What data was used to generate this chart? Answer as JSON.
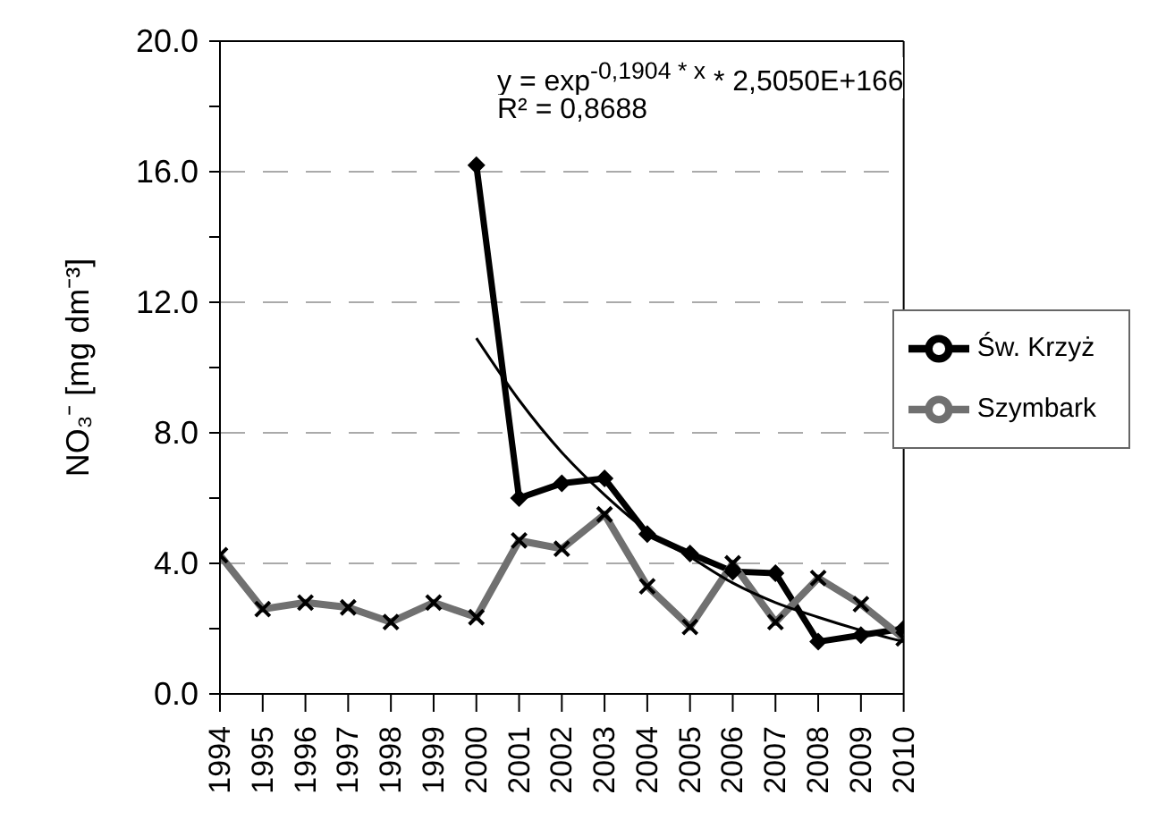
{
  "chart_data": {
    "type": "line",
    "ylabel": "NO₃⁻ [mg dm⁻³]",
    "annotations": [
      "y = exp$^{-0,1904 * x}$ * 2,5050E+166",
      "R² = 0,8688"
    ],
    "series": [
      {
        "name": "Św. Krzyż",
        "color": "#000000",
        "marker": "diamond",
        "x": [
          2000,
          2001,
          2002,
          2003,
          2004,
          2005,
          2006,
          2007,
          2008,
          2009,
          2010
        ],
        "values": [
          16.2,
          6.0,
          6.45,
          6.6,
          4.9,
          4.3,
          3.75,
          3.7,
          1.6,
          1.8,
          2.0
        ]
      },
      {
        "name": "Szymbark",
        "color": "#707070",
        "marker": "cross",
        "x": [
          1994,
          1995,
          1996,
          1997,
          1998,
          1999,
          2000,
          2001,
          2002,
          2003,
          2004,
          2005,
          2006,
          2007,
          2008,
          2009,
          2010
        ],
        "values": [
          4.25,
          2.6,
          2.8,
          2.65,
          2.2,
          2.8,
          2.35,
          4.7,
          4.45,
          5.5,
          3.3,
          2.05,
          4.0,
          2.2,
          3.55,
          2.75,
          1.7
        ]
      },
      {
        "type": "line",
        "color": "#000000",
        "marker": "none",
        "x": [
          2000,
          2001,
          2002,
          2003,
          2004,
          2005,
          2006,
          2007,
          2008,
          2009,
          2010
        ],
        "values": [
          10.9,
          9.0,
          7.4,
          6.1,
          5.0,
          4.2,
          3.4,
          2.8,
          2.35,
          1.95,
          1.6
        ]
      }
    ],
    "xlim": [
      1994,
      2010
    ],
    "xticks": [
      1994,
      1995,
      1996,
      1997,
      1998,
      1999,
      2000,
      2001,
      2002,
      2003,
      2004,
      2005,
      2006,
      2007,
      2008,
      2009,
      2010
    ],
    "ylim": [
      0,
      20
    ],
    "yticks": [
      {
        "value": 0,
        "label": "0.0"
      },
      {
        "value": 2,
        "label": null
      },
      {
        "value": 4,
        "label": "4.0"
      },
      {
        "value": 6,
        "label": null
      },
      {
        "value": 8,
        "label": "8.0"
      },
      {
        "value": 10,
        "label": null
      },
      {
        "value": 12,
        "label": "12.0"
      },
      {
        "value": 14,
        "label": null
      },
      {
        "value": 16,
        "label": "16.0"
      },
      {
        "value": 18,
        "label": null
      },
      {
        "value": 20,
        "label": "20.0"
      }
    ],
    "grid": "y",
    "legend": "right"
  }
}
